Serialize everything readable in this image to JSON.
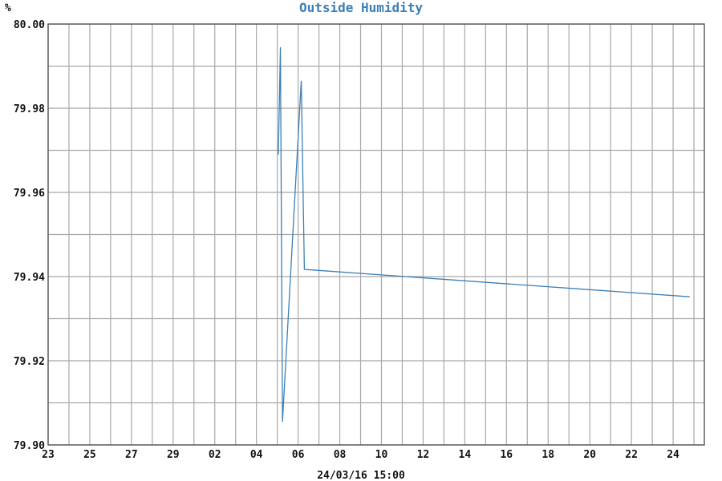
{
  "chart_data": {
    "type": "line",
    "title": "Outside Humidity",
    "ylabel": "%",
    "xlabel": "24/03/16 15:00",
    "ylim": [
      79.9,
      80.0
    ],
    "y_ticks": [
      "79.90",
      "79.92",
      "79.94",
      "79.96",
      "79.98",
      "80.00"
    ],
    "y_tick_values": [
      79.9,
      79.92,
      79.94,
      79.96,
      79.98,
      80.0
    ],
    "y_minor_step": 0.01,
    "x_tick_labels": [
      "23",
      "25",
      "27",
      "29",
      "02",
      "04",
      "06",
      "08",
      "10",
      "12",
      "14",
      "16",
      "18",
      "20",
      "22",
      "24"
    ],
    "xlim": [
      0,
      31.5
    ],
    "x_minor_step": 1,
    "x_label_step": 2,
    "grid": true,
    "series": [
      {
        "color": "#3b7fb6",
        "x": [
          11.05,
          11.15,
          11.25,
          12.15,
          12.3,
          30.8
        ],
        "y": [
          79.969,
          79.9945,
          79.9055,
          79.9865,
          79.9417,
          79.9352
        ]
      }
    ],
    "colors": {
      "title": "#3b7fb6",
      "line": "#3b7fb6",
      "grid": "#a8a8a8",
      "axis": "#555555",
      "text": "#111111"
    }
  }
}
